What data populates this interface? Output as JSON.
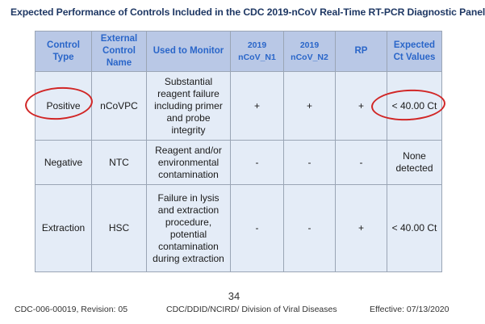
{
  "title": "Expected Performance of Controls Included in the CDC 2019-nCoV Real-Time RT-PCR Diagnostic Panel",
  "table": {
    "headers": [
      "Control Type",
      "External Control Name",
      "Used to Monitor",
      "2019 nCoV_N1",
      "2019 nCoV_N2",
      "RP",
      "Expected Ct Values"
    ],
    "rows": [
      [
        "Positive",
        "nCoVPC",
        "Substantial reagent failure including primer and probe integrity",
        "+",
        "+",
        "+",
        "< 40.00 Ct"
      ],
      [
        "Negative",
        "NTC",
        "Reagent and/or environmental contamination",
        "-",
        "-",
        "-",
        "None detected"
      ],
      [
        "Extraction",
        "HSC",
        "Failure in lysis and extraction procedure, potential contamination during extraction",
        "-",
        "-",
        "+",
        "< 40.00 Ct"
      ]
    ]
  },
  "annotation_color": "#d12626",
  "footer": {
    "page_number": "34",
    "left": "CDC-006-00019, Revision: 05",
    "center": "CDC/DDID/NCIRD/ Division of Viral Diseases",
    "right": "Effective: 07/13/2020"
  }
}
